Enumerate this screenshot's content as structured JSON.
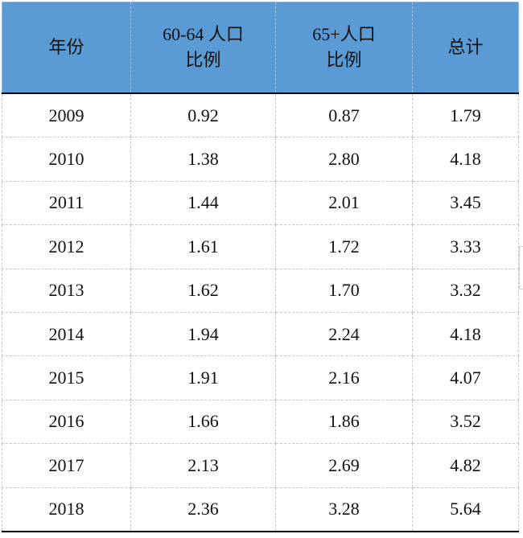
{
  "table": {
    "headers": [
      [
        "年份"
      ],
      [
        "60-64 人口",
        "比例"
      ],
      [
        "65+人口",
        "比例"
      ],
      [
        "总计"
      ]
    ],
    "rows": [
      [
        "2009",
        "0.92",
        "0.87",
        "1.79"
      ],
      [
        "2010",
        "1.38",
        "2.80",
        "4.18"
      ],
      [
        "2011",
        "1.44",
        "2.01",
        "3.45"
      ],
      [
        "2012",
        "1.61",
        "1.72",
        "3.33"
      ],
      [
        "2013",
        "1.62",
        "1.70",
        "3.32"
      ],
      [
        "2014",
        "1.94",
        "2.24",
        "4.18"
      ],
      [
        "2015",
        "1.91",
        "2.16",
        "4.07"
      ],
      [
        "2016",
        "1.66",
        "1.86",
        "3.52"
      ],
      [
        "2017",
        "2.13",
        "2.69",
        "4.82"
      ],
      [
        "2018",
        "2.36",
        "3.28",
        "5.64"
      ]
    ]
  },
  "colors": {
    "header_background": "#5b9bd5",
    "text": "#111111",
    "grid": "#c8c8c8",
    "rule": "#000000"
  }
}
